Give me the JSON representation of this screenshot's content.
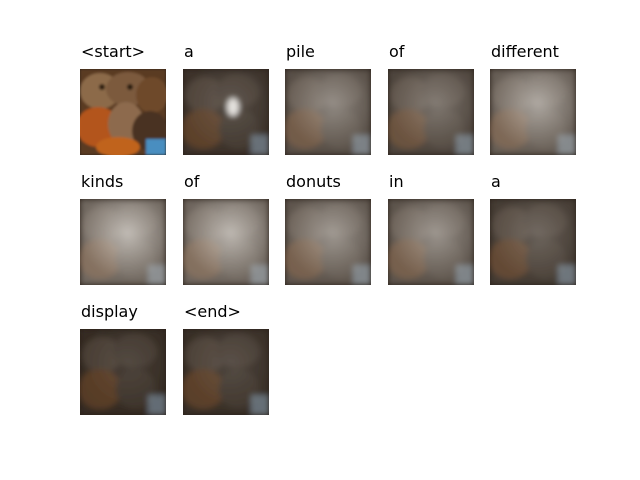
{
  "caption_words": [
    {
      "word": "<start>",
      "attention": 0.0
    },
    {
      "word": "a",
      "attention": 0.25
    },
    {
      "word": "pile",
      "attention": 0.55
    },
    {
      "word": "of",
      "attention": 0.45
    },
    {
      "word": "different",
      "attention": 0.7
    },
    {
      "word": "kinds",
      "attention": 0.8
    },
    {
      "word": "of",
      "attention": 0.78
    },
    {
      "word": "donuts",
      "attention": 0.62
    },
    {
      "word": "in",
      "attention": 0.6
    },
    {
      "word": "a",
      "attention": 0.35
    },
    {
      "word": "display",
      "attention": 0.18
    },
    {
      "word": "<end>",
      "attention": 0.22
    }
  ],
  "columns_per_row": 5
}
